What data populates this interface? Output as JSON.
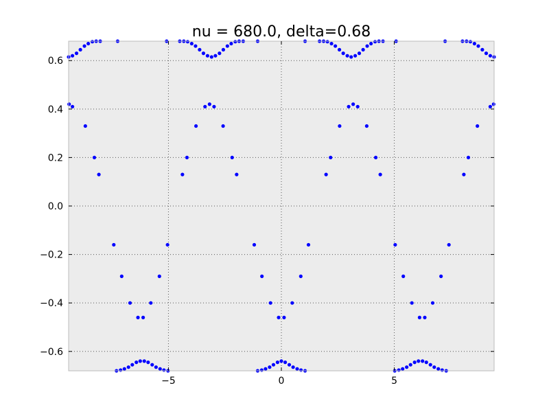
{
  "chart_data": {
    "type": "scatter",
    "title": "nu = 680.0, delta=0.68",
    "xlabel": "",
    "ylabel": "",
    "xlim": [
      -9.42,
      9.42
    ],
    "ylim": [
      -0.68,
      0.68
    ],
    "xticks": [
      -5,
      0,
      5
    ],
    "yticks": [
      -0.6,
      -0.4,
      -0.2,
      0.0,
      0.2,
      0.4,
      0.6
    ],
    "xtick_labels": [
      "−5",
      "0",
      "5"
    ],
    "ytick_labels": [
      "−0.6",
      "−0.4",
      "−0.2",
      "0.0",
      "0.2",
      "0.4",
      "0.6"
    ],
    "grid": true,
    "colors": {
      "plot_background": "#ececec",
      "marker": "#0000ff",
      "grid": "#555555",
      "frame": "#bbbbbb"
    },
    "series": [
      {
        "name": "points",
        "points": [
          [
            -9.4,
            0.42
          ],
          [
            -9.25,
            0.41
          ],
          [
            -8.68,
            0.33
          ],
          [
            -8.28,
            0.2
          ],
          [
            -8.08,
            0.13
          ],
          [
            -7.42,
            -0.16
          ],
          [
            -7.07,
            -0.29
          ],
          [
            -6.7,
            -0.4
          ],
          [
            -6.35,
            -0.46
          ],
          [
            -6.12,
            -0.46
          ],
          [
            -5.78,
            -0.4
          ],
          [
            -5.4,
            -0.29
          ],
          [
            -5.04,
            -0.16
          ],
          [
            -4.38,
            0.13
          ],
          [
            -4.18,
            0.2
          ],
          [
            -3.78,
            0.33
          ],
          [
            -3.38,
            0.41
          ],
          [
            -3.18,
            0.42
          ],
          [
            -2.98,
            0.41
          ],
          [
            -2.58,
            0.33
          ],
          [
            -2.18,
            0.2
          ],
          [
            -1.98,
            0.13
          ],
          [
            -1.2,
            -0.16
          ],
          [
            -0.86,
            -0.29
          ],
          [
            -0.48,
            -0.4
          ],
          [
            -0.12,
            -0.46
          ],
          [
            0.12,
            -0.46
          ],
          [
            0.48,
            -0.4
          ],
          [
            0.86,
            -0.29
          ],
          [
            1.2,
            -0.16
          ],
          [
            1.98,
            0.13
          ],
          [
            2.18,
            0.2
          ],
          [
            2.58,
            0.33
          ],
          [
            2.98,
            0.41
          ],
          [
            3.18,
            0.42
          ],
          [
            3.38,
            0.41
          ],
          [
            3.78,
            0.33
          ],
          [
            4.18,
            0.2
          ],
          [
            4.38,
            0.13
          ],
          [
            5.04,
            -0.16
          ],
          [
            5.4,
            -0.29
          ],
          [
            5.78,
            -0.4
          ],
          [
            6.12,
            -0.46
          ],
          [
            6.35,
            -0.46
          ],
          [
            6.7,
            -0.4
          ],
          [
            7.07,
            -0.29
          ],
          [
            7.42,
            -0.16
          ],
          [
            8.08,
            0.13
          ],
          [
            8.28,
            0.2
          ],
          [
            8.68,
            0.33
          ],
          [
            9.25,
            0.41
          ],
          [
            9.4,
            0.42
          ],
          [
            -9.42,
            0.615
          ],
          [
            -9.25,
            0.62
          ],
          [
            -9.07,
            0.63
          ],
          [
            -8.9,
            0.645
          ],
          [
            -8.72,
            0.66
          ],
          [
            -8.55,
            0.67
          ],
          [
            -8.37,
            0.678
          ],
          [
            -8.2,
            0.68
          ],
          [
            -8.02,
            0.68
          ],
          [
            -7.25,
            0.68
          ],
          [
            -5.08,
            0.68
          ],
          [
            -4.5,
            0.68
          ],
          [
            -4.32,
            0.68
          ],
          [
            -4.15,
            0.678
          ],
          [
            -3.97,
            0.67
          ],
          [
            -3.8,
            0.66
          ],
          [
            -3.62,
            0.645
          ],
          [
            -3.45,
            0.63
          ],
          [
            -3.27,
            0.62
          ],
          [
            -3.09,
            0.615
          ],
          [
            -2.92,
            0.62
          ],
          [
            -2.74,
            0.63
          ],
          [
            -2.57,
            0.645
          ],
          [
            -2.39,
            0.66
          ],
          [
            -2.22,
            0.67
          ],
          [
            -2.04,
            0.678
          ],
          [
            -1.87,
            0.68
          ],
          [
            -1.69,
            0.68
          ],
          [
            -1.05,
            0.68
          ],
          [
            1.05,
            0.68
          ],
          [
            1.69,
            0.68
          ],
          [
            1.87,
            0.68
          ],
          [
            2.04,
            0.678
          ],
          [
            2.22,
            0.67
          ],
          [
            2.39,
            0.66
          ],
          [
            2.57,
            0.645
          ],
          [
            2.74,
            0.63
          ],
          [
            2.92,
            0.62
          ],
          [
            3.09,
            0.615
          ],
          [
            3.27,
            0.62
          ],
          [
            3.45,
            0.63
          ],
          [
            3.62,
            0.645
          ],
          [
            3.8,
            0.66
          ],
          [
            3.97,
            0.67
          ],
          [
            4.15,
            0.678
          ],
          [
            4.32,
            0.68
          ],
          [
            4.5,
            0.68
          ],
          [
            5.08,
            0.68
          ],
          [
            7.25,
            0.68
          ],
          [
            8.02,
            0.68
          ],
          [
            8.2,
            0.68
          ],
          [
            8.37,
            0.678
          ],
          [
            8.55,
            0.67
          ],
          [
            8.72,
            0.66
          ],
          [
            8.9,
            0.645
          ],
          [
            9.07,
            0.63
          ],
          [
            9.25,
            0.62
          ],
          [
            9.42,
            0.615
          ],
          [
            -7.3,
            -0.68
          ],
          [
            -7.12,
            -0.677
          ],
          [
            -6.95,
            -0.672
          ],
          [
            -6.77,
            -0.665
          ],
          [
            -6.6,
            -0.655
          ],
          [
            -6.42,
            -0.645
          ],
          [
            -6.25,
            -0.64
          ],
          [
            -6.07,
            -0.64
          ],
          [
            -5.9,
            -0.645
          ],
          [
            -5.72,
            -0.655
          ],
          [
            -5.55,
            -0.665
          ],
          [
            -5.37,
            -0.672
          ],
          [
            -5.2,
            -0.677
          ],
          [
            -5.02,
            -0.68
          ],
          [
            -1.05,
            -0.68
          ],
          [
            -0.87,
            -0.677
          ],
          [
            -0.7,
            -0.672
          ],
          [
            -0.52,
            -0.665
          ],
          [
            -0.35,
            -0.655
          ],
          [
            -0.17,
            -0.645
          ],
          [
            0.0,
            -0.64
          ],
          [
            0.17,
            -0.645
          ],
          [
            0.35,
            -0.655
          ],
          [
            0.52,
            -0.665
          ],
          [
            0.7,
            -0.672
          ],
          [
            0.87,
            -0.677
          ],
          [
            1.05,
            -0.68
          ],
          [
            5.02,
            -0.68
          ],
          [
            5.2,
            -0.677
          ],
          [
            5.37,
            -0.672
          ],
          [
            5.55,
            -0.665
          ],
          [
            5.72,
            -0.655
          ],
          [
            5.9,
            -0.645
          ],
          [
            6.07,
            -0.64
          ],
          [
            6.25,
            -0.64
          ],
          [
            6.42,
            -0.645
          ],
          [
            6.6,
            -0.655
          ],
          [
            6.77,
            -0.665
          ],
          [
            6.95,
            -0.672
          ],
          [
            7.12,
            -0.677
          ],
          [
            7.3,
            -0.68
          ]
        ]
      }
    ]
  }
}
